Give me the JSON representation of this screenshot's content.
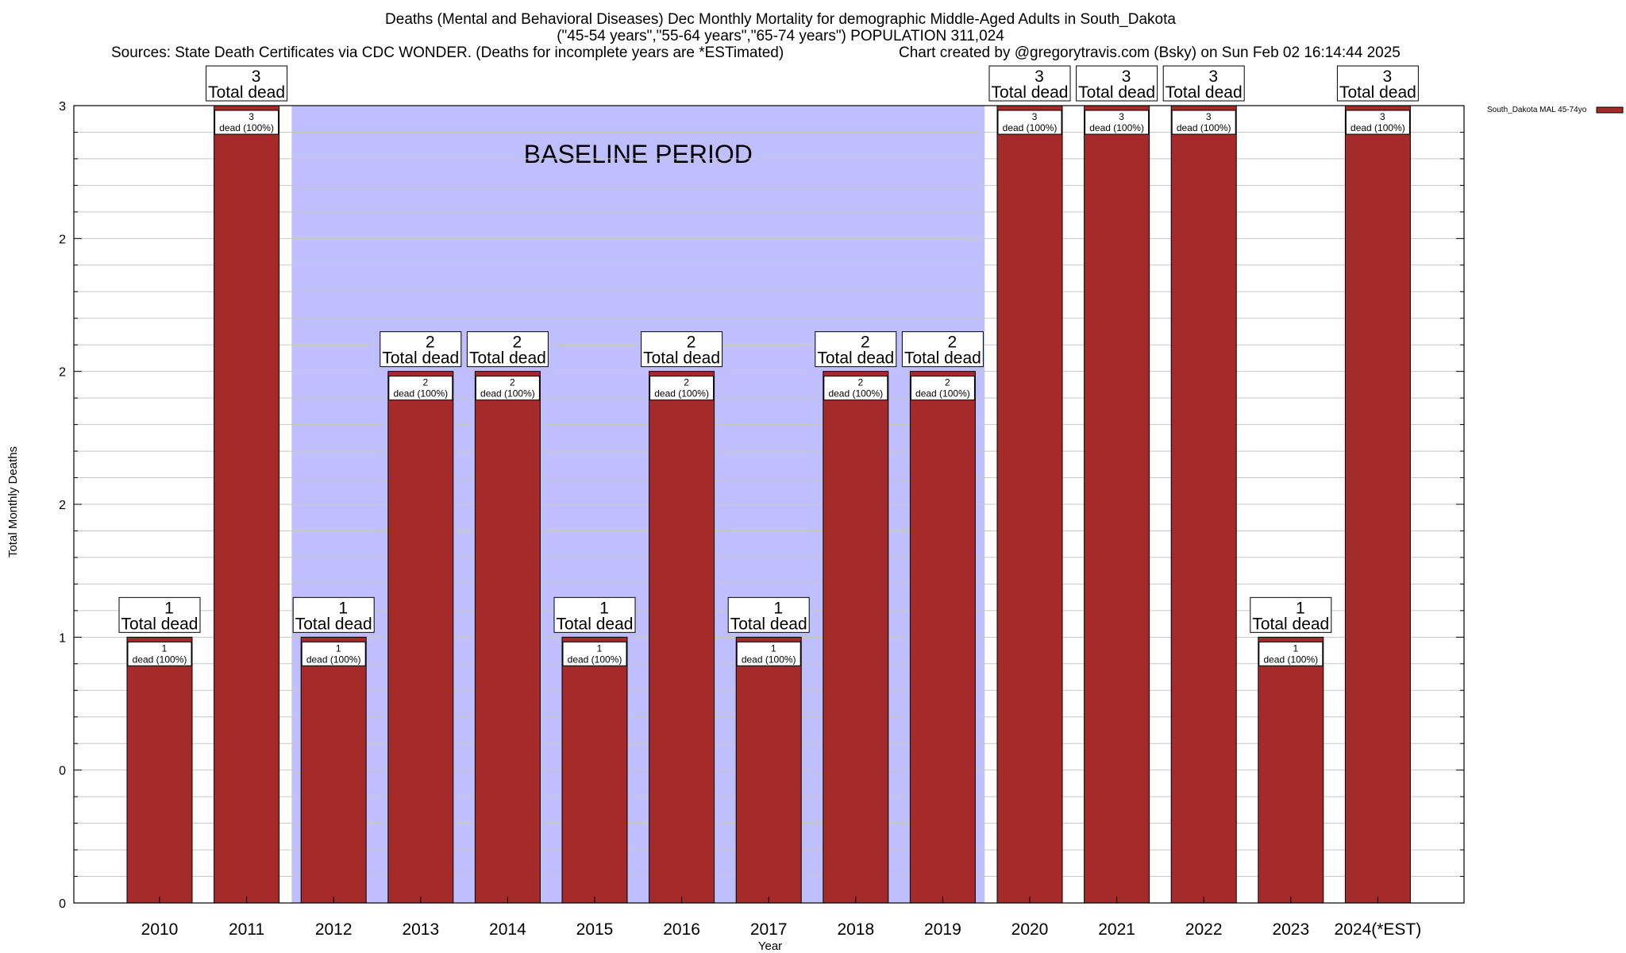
{
  "chart_data": {
    "type": "bar",
    "title_lines": [
      "Deaths (Mental and Behavioral Diseases) Dec Monthly Mortality for demographic Middle-Aged Adults in South_Dakota",
      "(\"45-54 years\",\"55-64 years\",\"65-74 years\") POPULATION 311,024"
    ],
    "sources": "Sources: State Death Certificates via CDC WONDER. (Deaths for incomplete years are *ESTimated)",
    "credit": "Chart created by @gregorytravis.com (Bsky) on Sun Feb 02 16:14:44 2025",
    "xlabel": "Year",
    "ylabel": "Total Monthly Deaths",
    "categories": [
      "2010",
      "2011",
      "2012",
      "2013",
      "2014",
      "2015",
      "2016",
      "2017",
      "2018",
      "2019",
      "2020",
      "2021",
      "2022",
      "2023",
      "2024(*EST)"
    ],
    "values": [
      1,
      3,
      1,
      2,
      2,
      1,
      2,
      1,
      2,
      2,
      3,
      3,
      3,
      1,
      3
    ],
    "y_tick_labels": [
      "0",
      "0",
      "1",
      "2",
      "2",
      "2",
      "3"
    ],
    "ylim": [
      0,
      3
    ],
    "legend": {
      "label": "South_Dakota MAL 45-74yo",
      "position": "top-right",
      "color": "#a52a2a"
    },
    "total_label": "Total dead",
    "inner_label_suffix": "dead (100%)",
    "baseline": {
      "label": "BASELINE PERIOD",
      "start": "2012",
      "end": "2019",
      "color": "#bfbfff"
    },
    "bar_color": "#a52a2a",
    "grid": true
  }
}
